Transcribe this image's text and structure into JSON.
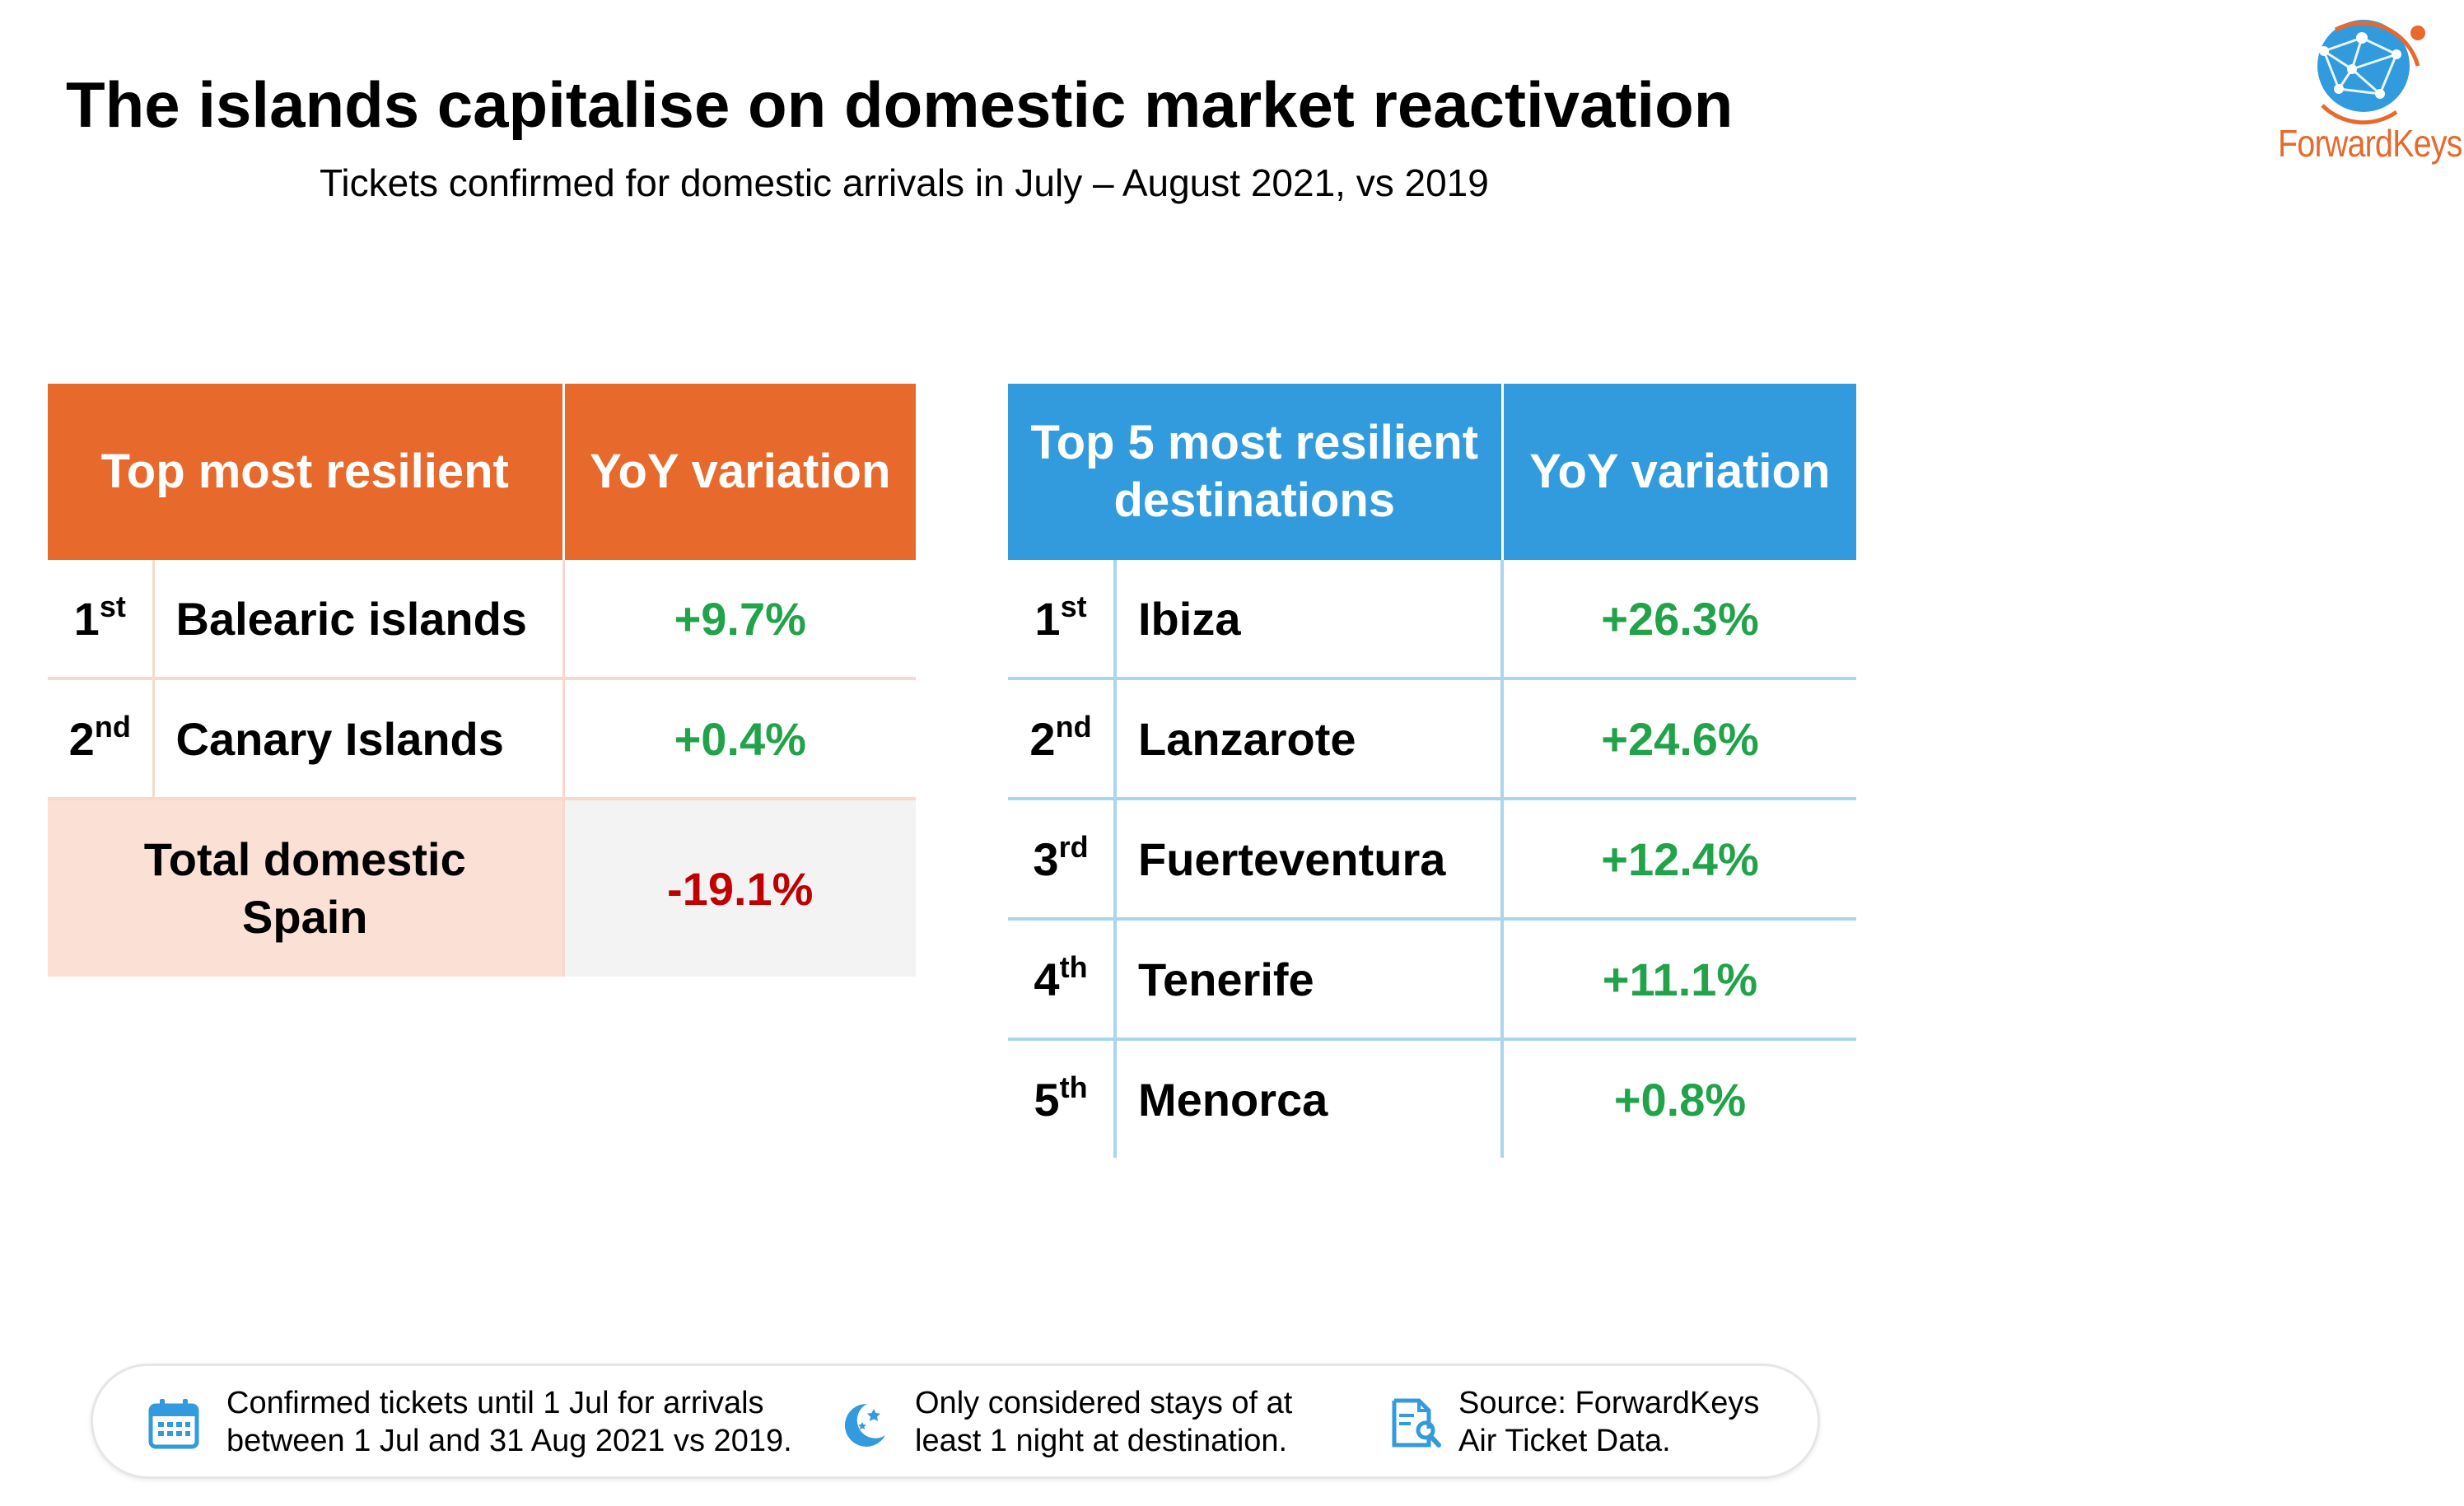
{
  "title": "The islands capitalise on domestic market reactivation",
  "subtitle": "Tickets confirmed for domestic arrivals in July – August 2021, vs 2019",
  "logo": {
    "text": "ForwardKeys",
    "icon": "globe-network-icon",
    "color": "#e8692c"
  },
  "left_table": {
    "header_name": "Top most resilient",
    "header_value": "YoY variation",
    "rows": [
      {
        "rank": "1",
        "suffix": "st",
        "name": "Balearic islands",
        "value": "+9.7%"
      },
      {
        "rank": "2",
        "suffix": "nd",
        "name": "Canary Islands",
        "value": "+0.4%"
      }
    ],
    "total_label_line1": "Total domestic",
    "total_label_line2": "Spain",
    "total_value": "-19.1%"
  },
  "right_table": {
    "header_name_line1": "Top 5 most resilient",
    "header_name_line2": "destinations",
    "header_value": "YoY variation",
    "rows": [
      {
        "rank": "1",
        "suffix": "st",
        "name": "Ibiza",
        "value": "+26.3%"
      },
      {
        "rank": "2",
        "suffix": "nd",
        "name": "Lanzarote",
        "value": "+24.6%"
      },
      {
        "rank": "3",
        "suffix": "rd",
        "name": "Fuerteventura",
        "value": "+12.4%"
      },
      {
        "rank": "4",
        "suffix": "th",
        "name": "Tenerife",
        "value": "+11.1%"
      },
      {
        "rank": "5",
        "suffix": "th",
        "name": "Menorca",
        "value": "+0.8%"
      }
    ]
  },
  "footer": {
    "notes": [
      {
        "icon": "calendar-icon",
        "line1": "Confirmed tickets until 1 Jul for arrivals",
        "line2": "between 1 Jul and 31 Aug 2021 vs 2019."
      },
      {
        "icon": "moon-stars-icon",
        "line1": "Only considered stays of at",
        "line2": "least 1 night at destination."
      },
      {
        "icon": "document-search-icon",
        "line1": "Source: ForwardKeys",
        "line2": "Air Ticket Data."
      }
    ]
  },
  "colors": {
    "orange": "#e8692c",
    "blue": "#319bdd",
    "positive": "#21a34a",
    "negative": "#c00000",
    "total_bg": "#fbe0d6"
  }
}
